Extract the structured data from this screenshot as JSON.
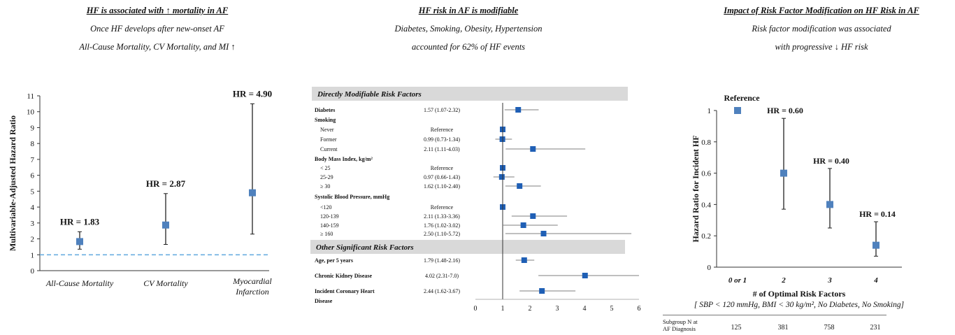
{
  "headers": [
    {
      "title": "HF is associated with ↑ mortality in AF",
      "lines": [
        "Once HF develops after new-onset AF",
        "All-Cause Mortality, CV Mortality, and MI ↑"
      ]
    },
    {
      "title": "HF risk in AF is modifiable",
      "lines": [
        "Diabetes, Smoking, Obesity, Hypertension",
        "accounted for  62% of HF events"
      ]
    },
    {
      "title": "Impact of Risk Factor Modification on HF Risk in AF",
      "lines": [
        "Risk factor modification was associated",
        "with progressive ↓ HF risk"
      ]
    }
  ],
  "colors": {
    "marker": "#4f81bd",
    "dashed": "#6aaee0",
    "section": "#d9d9d9"
  },
  "chart_data": [
    {
      "type": "scatter",
      "ylabel": "Multivariable-Adjusted Hazard Ratio",
      "ylim": [
        0,
        11
      ],
      "yticks": [
        0,
        1,
        2,
        3,
        4,
        5,
        6,
        7,
        8,
        9,
        10,
        11
      ],
      "reference_line": 1,
      "categories": [
        "All-Cause Mortality",
        "CV Mortality",
        "Myocardial Infarction"
      ],
      "points": [
        {
          "category": "All-Cause Mortality",
          "hr": 1.83,
          "lo": 1.35,
          "hi": 2.45,
          "label": "HR = 1.83"
        },
        {
          "category": "CV Mortality",
          "hr": 2.87,
          "lo": 1.65,
          "hi": 4.85,
          "label": "HR = 2.87"
        },
        {
          "category": "Myocardial Infarction",
          "hr": 4.9,
          "lo": 2.3,
          "hi": 10.5,
          "label": "HR = 4.90"
        }
      ]
    },
    {
      "type": "scatter",
      "subtype": "forest",
      "xlim": [
        0,
        6
      ],
      "xticks": [
        0,
        1,
        2,
        3,
        4,
        5,
        6
      ],
      "reference_line": 1,
      "sections": [
        {
          "title": "Directly Modifiable Risk Factors",
          "rows": [
            {
              "label": "Diabetes",
              "bold": true,
              "indent": false,
              "ci": "1.57 (1.07-2.32)",
              "hr": 1.57,
              "lo": 1.07,
              "hi": 2.32
            },
            {
              "label": "Smoking",
              "bold": true,
              "indent": false
            },
            {
              "label": "Never",
              "indent": true,
              "ci": "Reference",
              "hr": 1
            },
            {
              "label": "Former",
              "indent": true,
              "ci": "0.99 (0.73-1.34)",
              "hr": 0.99,
              "lo": 0.73,
              "hi": 1.34
            },
            {
              "label": "Current",
              "indent": true,
              "ci": "2.11 (1.11-4.03)",
              "hr": 2.11,
              "lo": 1.11,
              "hi": 4.03
            },
            {
              "label": "Body Mass Index, kg/m²",
              "bold": true,
              "indent": false
            },
            {
              "label": "< 25",
              "indent": true,
              "ci": "Reference",
              "hr": 1
            },
            {
              "label": "25-29",
              "indent": true,
              "ci": "0.97 (0.66-1.43)",
              "hr": 0.97,
              "lo": 0.66,
              "hi": 1.43
            },
            {
              "label": "≥ 30",
              "indent": true,
              "ci": "1.62 (1.10-2.40)",
              "hr": 1.62,
              "lo": 1.1,
              "hi": 2.4
            },
            {
              "label": "Systolic Blood Pressure, mmHg",
              "bold": true,
              "indent": false
            },
            {
              "label": "<120",
              "indent": true,
              "ci": "Reference",
              "hr": 1
            },
            {
              "label": "120-139",
              "indent": true,
              "ci": "2.11 (1.33-3.36)",
              "hr": 2.11,
              "lo": 1.33,
              "hi": 3.36
            },
            {
              "label": "140-159",
              "indent": true,
              "ci": "1.76 (1.02-3.02)",
              "hr": 1.76,
              "lo": 1.02,
              "hi": 3.02
            },
            {
              "label": "≥ 160",
              "indent": true,
              "ci": "2.50 (1.10-5.72)",
              "hr": 2.5,
              "lo": 1.1,
              "hi": 5.72
            }
          ]
        },
        {
          "title": "Other Significant Risk Factors",
          "rows": [
            {
              "label": "Age, per 5 years",
              "bold": true,
              "indent": false,
              "ci": "1.79 (1.48-2.16)",
              "hr": 1.79,
              "lo": 1.48,
              "hi": 2.16
            },
            {
              "label": "Chronic Kidney Disease",
              "bold": true,
              "indent": false,
              "ci": "4.02 (2.31-7.0)",
              "hr": 4.02,
              "lo": 2.31,
              "hi": 7.0
            },
            {
              "label": "Incident Coronary Heart",
              "label2": "Disease",
              "bold": true,
              "indent": false,
              "ci": "2.44 (1.62-3.67)",
              "hr": 2.44,
              "lo": 1.62,
              "hi": 3.67
            }
          ]
        }
      ]
    },
    {
      "type": "scatter",
      "ylabel": "Hazard Ratio for Incident HF",
      "xlabel": "# of Optimal Risk Factors",
      "xlabel2": "[ SBP < 120 mmHg, BMI < 30 kg/m², No Diabetes, No Smoking]",
      "ylim": [
        0,
        1
      ],
      "yticks": [
        "0",
        "0.2",
        "0.4",
        "0.6",
        "0.8",
        "1"
      ],
      "categories": [
        "0 or 1",
        "2",
        "3",
        "4"
      ],
      "points": [
        {
          "category": "0 or 1",
          "hr": 1.0,
          "label": "Reference"
        },
        {
          "category": "2",
          "hr": 0.6,
          "lo": 0.37,
          "hi": 0.95,
          "label": "HR = 0.60"
        },
        {
          "category": "3",
          "hr": 0.4,
          "lo": 0.25,
          "hi": 0.63,
          "label": "HR = 0.40"
        },
        {
          "category": "4",
          "hr": 0.14,
          "lo": 0.07,
          "hi": 0.29,
          "label": "HR = 0.14"
        }
      ],
      "subgroup": {
        "label": "Subgroup N at AF Diagnosis",
        "values": [
          "125",
          "381",
          "758",
          "231"
        ]
      }
    }
  ]
}
